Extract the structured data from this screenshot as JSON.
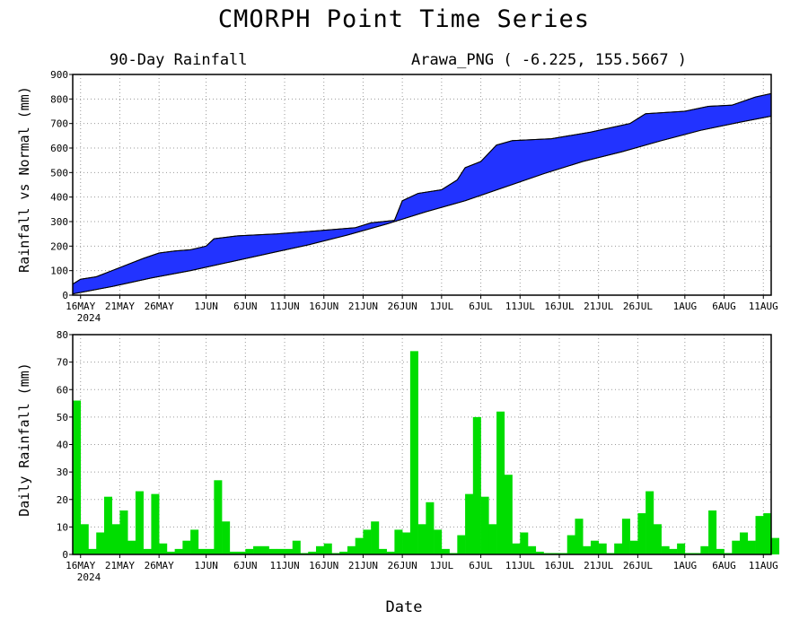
{
  "title": "CMORPH Point Time Series",
  "xlabel": "Date",
  "chart_data": [
    {
      "type": "area",
      "subtitle_left": "90-Day Rainfall",
      "subtitle_right": "Arawa_PNG ( -6.225, 155.5667 )",
      "ylabel": "Rainfall vs Normal (mm)",
      "ylim": [
        0,
        900
      ],
      "yticks": [
        0,
        100,
        200,
        300,
        400,
        500,
        600,
        700,
        800,
        900
      ],
      "xticks": [
        "16MAY",
        "21MAY",
        "26MAY",
        "1JUN",
        "6JUN",
        "11JUN",
        "16JUN",
        "21JUN",
        "26JUN",
        "1JUL",
        "6JUL",
        "11JUL",
        "16JUL",
        "21JUL",
        "26JUL",
        "1AUG",
        "6AUG",
        "11AUG"
      ],
      "xtick_year": "2024",
      "grid": true,
      "fill_color": "#2233ff",
      "series": [
        {
          "values": [
            {
              "x": "2024-05-15",
              "y": 45
            },
            {
              "x": "2024-05-16",
              "y": 65
            },
            {
              "x": "2024-05-18",
              "y": 75
            },
            {
              "x": "2024-05-20",
              "y": 100
            },
            {
              "x": "2024-05-22",
              "y": 125
            },
            {
              "x": "2024-05-24",
              "y": 150
            },
            {
              "x": "2024-05-26",
              "y": 172
            },
            {
              "x": "2024-05-28",
              "y": 180
            },
            {
              "x": "2024-05-30",
              "y": 185
            },
            {
              "x": "2024-06-01",
              "y": 200
            },
            {
              "x": "2024-06-02",
              "y": 230
            },
            {
              "x": "2024-06-05",
              "y": 242
            },
            {
              "x": "2024-06-10",
              "y": 250
            },
            {
              "x": "2024-06-15",
              "y": 262
            },
            {
              "x": "2024-06-20",
              "y": 275
            },
            {
              "x": "2024-06-22",
              "y": 295
            },
            {
              "x": "2024-06-25",
              "y": 305
            },
            {
              "x": "2024-06-26",
              "y": 385
            },
            {
              "x": "2024-06-28",
              "y": 415
            },
            {
              "x": "2024-07-01",
              "y": 430
            },
            {
              "x": "2024-07-03",
              "y": 470
            },
            {
              "x": "2024-07-04",
              "y": 520
            },
            {
              "x": "2024-07-06",
              "y": 545
            },
            {
              "x": "2024-07-08",
              "y": 612
            },
            {
              "x": "2024-07-10",
              "y": 630
            },
            {
              "x": "2024-07-15",
              "y": 638
            },
            {
              "x": "2024-07-20",
              "y": 665
            },
            {
              "x": "2024-07-25",
              "y": 700
            },
            {
              "x": "2024-07-27",
              "y": 740
            },
            {
              "x": "2024-08-01",
              "y": 750
            },
            {
              "x": "2024-08-04",
              "y": 770
            },
            {
              "x": "2024-08-07",
              "y": 775
            },
            {
              "x": "2024-08-10",
              "y": 808
            },
            {
              "x": "2024-08-12",
              "y": 822
            }
          ]
        },
        {
          "values": [
            {
              "x": "2024-05-15",
              "y": 5
            },
            {
              "x": "2024-05-20",
              "y": 35
            },
            {
              "x": "2024-05-25",
              "y": 70
            },
            {
              "x": "2024-05-30",
              "y": 100
            },
            {
              "x": "2024-06-04",
              "y": 135
            },
            {
              "x": "2024-06-09",
              "y": 170
            },
            {
              "x": "2024-06-14",
              "y": 205
            },
            {
              "x": "2024-06-19",
              "y": 245
            },
            {
              "x": "2024-06-24",
              "y": 290
            },
            {
              "x": "2024-06-29",
              "y": 340
            },
            {
              "x": "2024-07-04",
              "y": 385
            },
            {
              "x": "2024-07-09",
              "y": 440
            },
            {
              "x": "2024-07-14",
              "y": 495
            },
            {
              "x": "2024-07-19",
              "y": 545
            },
            {
              "x": "2024-07-24",
              "y": 585
            },
            {
              "x": "2024-07-29",
              "y": 630
            },
            {
              "x": "2024-08-03",
              "y": 672
            },
            {
              "x": "2024-08-08",
              "y": 705
            },
            {
              "x": "2024-08-12",
              "y": 730
            }
          ]
        }
      ]
    },
    {
      "type": "bar",
      "ylabel": "Daily Rainfall (mm)",
      "ylim": [
        0,
        80
      ],
      "yticks": [
        0,
        10,
        20,
        30,
        40,
        50,
        60,
        70,
        80
      ],
      "xticks": [
        "16MAY",
        "21MAY",
        "26MAY",
        "1JUN",
        "6JUN",
        "11JUN",
        "16JUN",
        "21JUN",
        "26JUN",
        "1JUL",
        "6JUL",
        "11JUL",
        "16JUL",
        "21JUL",
        "26JUL",
        "1AUG",
        "6AUG",
        "11AUG"
      ],
      "xtick_year": "2024",
      "grid": true,
      "bar_color": "#00dd00",
      "start_date": "2024-05-15",
      "values": [
        56,
        11,
        2,
        8,
        21,
        11,
        16,
        5,
        23,
        2,
        22,
        4,
        1,
        2,
        5,
        9,
        2,
        2,
        27,
        12,
        1,
        1,
        2,
        3,
        3,
        2,
        2,
        2,
        5,
        0.5,
        1,
        3,
        4,
        0.5,
        1,
        3,
        6,
        9,
        12,
        2,
        1,
        9,
        8,
        74,
        11,
        19,
        9,
        2,
        0.5,
        7,
        22,
        50,
        21,
        11,
        52,
        29,
        4,
        8,
        3,
        1,
        0.5,
        0.5,
        0.5,
        7,
        13,
        3,
        5,
        4,
        0.5,
        4,
        13,
        5,
        15,
        23,
        11,
        3,
        2,
        4,
        0.5,
        0.5,
        3,
        16,
        2,
        0.5,
        5,
        8,
        5,
        14,
        15,
        6
      ]
    }
  ]
}
